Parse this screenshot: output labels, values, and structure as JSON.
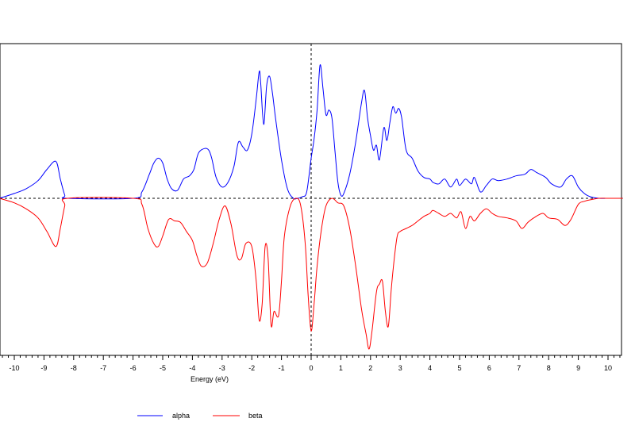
{
  "chart_data": {
    "type": "line",
    "title": "",
    "xlabel": "Energy (eV)",
    "ylabel": "",
    "xlim": [
      -10.5,
      10.5
    ],
    "ylim": [
      -1.0,
      0.9
    ],
    "x_ticks": [
      -10,
      -9,
      -8,
      -7,
      -6,
      -5,
      -4,
      -3,
      -2,
      -1,
      0,
      1,
      2,
      3,
      4,
      5,
      6,
      7,
      8,
      9,
      10
    ],
    "x_tick_labels": [
      "-10",
      "-9",
      "-8",
      "-7",
      "-6",
      "-5",
      "-4",
      "-3",
      "-2",
      "-1",
      "0",
      "1",
      "2",
      "3",
      "4",
      "5",
      "6",
      "7",
      "8",
      "9",
      "10"
    ],
    "reference_lines": {
      "horizontal_zero": true,
      "vertical_zero": true,
      "style": "dashed"
    },
    "grid": false,
    "legend_position": "bottom",
    "colors": {
      "alpha": "#0000ff",
      "beta": "#ff0000",
      "axes": "#000000"
    },
    "series": [
      {
        "name": "alpha",
        "x": [
          -10.5,
          -10.0,
          -9.6,
          -9.2,
          -8.9,
          -8.6,
          -8.45,
          -8.3,
          -8.2,
          -6.0,
          -5.7,
          -5.45,
          -5.3,
          -5.15,
          -5.0,
          -4.85,
          -4.7,
          -4.5,
          -4.3,
          -4.1,
          -3.95,
          -3.8,
          -3.6,
          -3.45,
          -3.35,
          -3.2,
          -3.0,
          -2.8,
          -2.6,
          -2.45,
          -2.3,
          -2.15,
          -2.0,
          -1.85,
          -1.75,
          -1.7,
          -1.6,
          -1.5,
          -1.4,
          -1.3,
          -1.2,
          -1.0,
          -0.8,
          -0.6,
          -0.45,
          -0.3,
          -0.15,
          0.0,
          0.1,
          0.2,
          0.3,
          0.4,
          0.5,
          0.6,
          0.7,
          0.8,
          0.9,
          1.0,
          1.1,
          1.3,
          1.5,
          1.7,
          1.8,
          1.9,
          2.0,
          2.1,
          2.2,
          2.3,
          2.45,
          2.55,
          2.65,
          2.75,
          2.85,
          2.95,
          3.05,
          3.2,
          3.4,
          3.6,
          3.8,
          4.0,
          4.1,
          4.3,
          4.5,
          4.7,
          4.9,
          5.0,
          5.2,
          5.4,
          5.5,
          5.7,
          5.9,
          6.1,
          6.3,
          6.6,
          6.9,
          7.2,
          7.4,
          7.6,
          7.9,
          8.1,
          8.4,
          8.6,
          8.8,
          9.0,
          9.2,
          9.4,
          9.7,
          10.0,
          10.5
        ],
        "y": [
          0.0,
          0.03,
          0.06,
          0.11,
          0.18,
          0.23,
          0.12,
          0.02,
          0.0,
          0.0,
          0.04,
          0.15,
          0.22,
          0.25,
          0.22,
          0.12,
          0.06,
          0.05,
          0.12,
          0.14,
          0.18,
          0.28,
          0.31,
          0.3,
          0.25,
          0.13,
          0.07,
          0.1,
          0.2,
          0.35,
          0.32,
          0.3,
          0.4,
          0.62,
          0.79,
          0.72,
          0.46,
          0.7,
          0.76,
          0.65,
          0.5,
          0.24,
          0.06,
          0.0,
          0.0,
          0.01,
          0.04,
          0.25,
          0.37,
          0.55,
          0.83,
          0.68,
          0.52,
          0.55,
          0.5,
          0.3,
          0.1,
          0.02,
          0.03,
          0.15,
          0.35,
          0.6,
          0.67,
          0.5,
          0.39,
          0.3,
          0.33,
          0.24,
          0.44,
          0.36,
          0.47,
          0.57,
          0.53,
          0.56,
          0.5,
          0.3,
          0.25,
          0.17,
          0.13,
          0.12,
          0.1,
          0.09,
          0.12,
          0.07,
          0.12,
          0.08,
          0.12,
          0.09,
          0.13,
          0.04,
          0.08,
          0.12,
          0.11,
          0.12,
          0.14,
          0.15,
          0.18,
          0.16,
          0.13,
          0.09,
          0.07,
          0.12,
          0.14,
          0.07,
          0.03,
          0.01,
          0.0,
          0.0,
          0.0
        ]
      },
      {
        "name": "beta",
        "x": [
          -10.5,
          -10.0,
          -9.6,
          -9.2,
          -8.9,
          -8.6,
          -8.45,
          -8.3,
          -8.2,
          -6.0,
          -5.7,
          -5.5,
          -5.3,
          -5.15,
          -5.0,
          -4.8,
          -4.6,
          -4.4,
          -4.2,
          -4.0,
          -3.85,
          -3.7,
          -3.5,
          -3.3,
          -3.1,
          -2.9,
          -2.7,
          -2.5,
          -2.35,
          -2.2,
          -2.0,
          -1.85,
          -1.75,
          -1.65,
          -1.55,
          -1.45,
          -1.35,
          -1.25,
          -1.1,
          -1.0,
          -0.9,
          -0.7,
          -0.5,
          -0.35,
          -0.2,
          -0.1,
          0.0,
          0.1,
          0.2,
          0.35,
          0.5,
          0.7,
          0.9,
          1.1,
          1.3,
          1.5,
          1.7,
          1.85,
          1.95,
          2.05,
          2.2,
          2.3,
          2.4,
          2.5,
          2.6,
          2.7,
          2.8,
          2.9,
          3.0,
          3.2,
          3.4,
          3.6,
          3.8,
          4.0,
          4.1,
          4.3,
          4.5,
          4.7,
          4.9,
          5.05,
          5.2,
          5.35,
          5.5,
          5.7,
          5.9,
          6.1,
          6.3,
          6.6,
          6.9,
          7.1,
          7.3,
          7.5,
          7.8,
          8.0,
          8.3,
          8.55,
          8.75,
          9.0,
          9.2,
          9.4,
          9.7,
          10.0,
          10.5
        ],
        "y": [
          0.0,
          -0.03,
          -0.07,
          -0.13,
          -0.22,
          -0.32,
          -0.2,
          -0.05,
          0.0,
          0.0,
          -0.04,
          -0.2,
          -0.3,
          -0.32,
          -0.25,
          -0.14,
          -0.15,
          -0.16,
          -0.22,
          -0.28,
          -0.38,
          -0.45,
          -0.43,
          -0.3,
          -0.14,
          -0.05,
          -0.17,
          -0.38,
          -0.4,
          -0.3,
          -0.32,
          -0.55,
          -0.81,
          -0.7,
          -0.32,
          -0.4,
          -0.84,
          -0.75,
          -0.78,
          -0.55,
          -0.25,
          -0.05,
          0.0,
          -0.05,
          -0.3,
          -0.65,
          -0.88,
          -0.7,
          -0.45,
          -0.2,
          -0.05,
          0.0,
          -0.03,
          -0.05,
          -0.2,
          -0.45,
          -0.74,
          -0.9,
          -1.0,
          -0.88,
          -0.62,
          -0.57,
          -0.55,
          -0.75,
          -0.85,
          -0.6,
          -0.4,
          -0.25,
          -0.22,
          -0.2,
          -0.18,
          -0.15,
          -0.12,
          -0.1,
          -0.08,
          -0.1,
          -0.12,
          -0.1,
          -0.13,
          -0.09,
          -0.2,
          -0.12,
          -0.15,
          -0.1,
          -0.07,
          -0.1,
          -0.12,
          -0.13,
          -0.15,
          -0.2,
          -0.16,
          -0.13,
          -0.1,
          -0.13,
          -0.14,
          -0.18,
          -0.14,
          -0.04,
          -0.02,
          -0.01,
          0.0,
          0.0,
          0.0
        ]
      }
    ]
  }
}
